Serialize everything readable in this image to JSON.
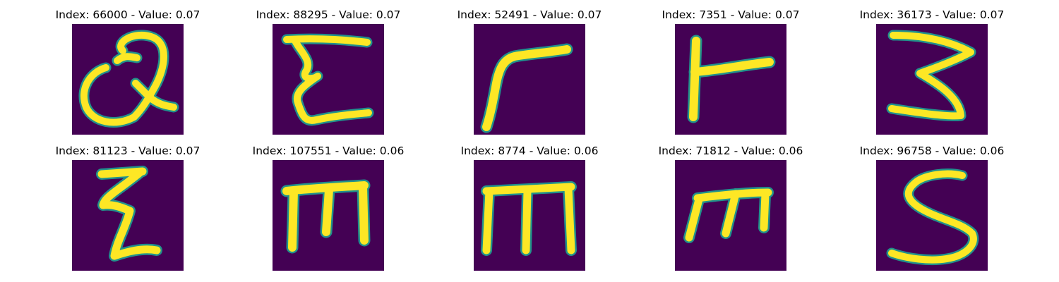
{
  "colors": {
    "background": "#440154",
    "stroke": "#fde725",
    "edge": "#21918c"
  },
  "panels": [
    {
      "title": "Index: 66000 - Value: 0.07",
      "glyph": "handwritten-Q"
    },
    {
      "title": "Index: 88295 - Value: 0.07",
      "glyph": "handwritten-E-like"
    },
    {
      "title": "Index: 52491 - Value: 0.07",
      "glyph": "handwritten-r"
    },
    {
      "title": "Index: 7351 - Value: 0.07",
      "glyph": "handwritten-r"
    },
    {
      "title": "Index: 36173 - Value: 0.07",
      "glyph": "handwritten-3"
    },
    {
      "title": "Index: 81123 - Value: 0.07",
      "glyph": "handwritten-z-like"
    },
    {
      "title": "Index: 107551 - Value: 0.06",
      "glyph": "handwritten-m"
    },
    {
      "title": "Index: 8774 - Value: 0.06",
      "glyph": "handwritten-m"
    },
    {
      "title": "Index: 71812 - Value: 0.06",
      "glyph": "handwritten-m"
    },
    {
      "title": "Index: 96758 - Value: 0.06",
      "glyph": "handwritten-S"
    }
  ]
}
